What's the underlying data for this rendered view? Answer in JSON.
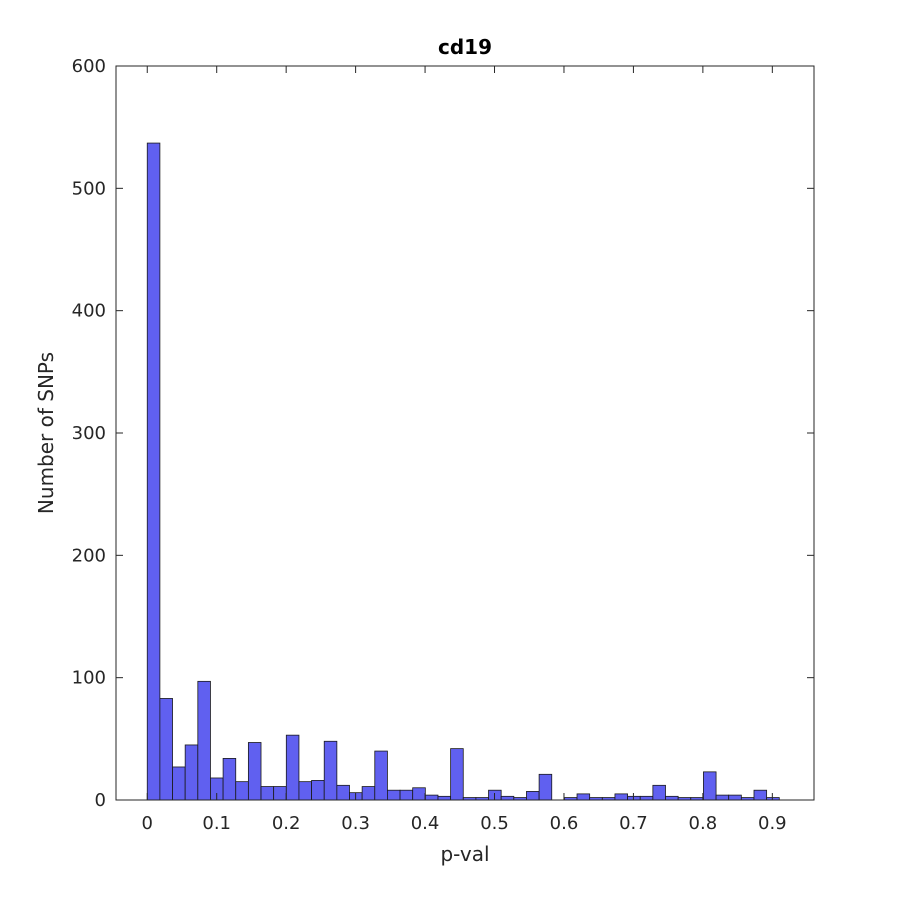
{
  "chart_data": {
    "type": "bar",
    "title": "cd19",
    "xlabel": "p-val",
    "ylabel": "Number of SNPs",
    "xlim": [
      -0.045,
      0.96
    ],
    "ylim": [
      0,
      600
    ],
    "xticks": [
      0,
      0.1,
      0.2,
      0.3,
      0.4,
      0.5,
      0.6,
      0.7,
      0.8,
      0.9
    ],
    "xtick_labels": [
      "0",
      "0.1",
      "0.2",
      "0.3",
      "0.4",
      "0.5",
      "0.6",
      "0.7",
      "0.8",
      "0.9"
    ],
    "yticks": [
      0,
      100,
      200,
      300,
      400,
      500,
      600
    ],
    "ytick_labels": [
      "0",
      "100",
      "200",
      "300",
      "400",
      "500",
      "600"
    ],
    "bin_start": 0,
    "bin_width": 0.0182,
    "values": [
      537,
      83,
      27,
      45,
      97,
      18,
      34,
      15,
      47,
      11,
      11,
      53,
      15,
      16,
      48,
      12,
      6,
      11,
      40,
      8,
      8,
      10,
      4,
      3,
      42,
      2,
      2,
      8,
      3,
      2,
      7,
      21,
      0,
      2,
      5,
      2,
      2,
      5,
      3,
      3,
      12,
      3,
      2,
      2,
      23,
      4,
      4,
      2,
      8,
      2
    ],
    "bar_color": "#6060f0",
    "bar_edge_color": "#1a1a1a",
    "grid": false,
    "legend": "none"
  }
}
